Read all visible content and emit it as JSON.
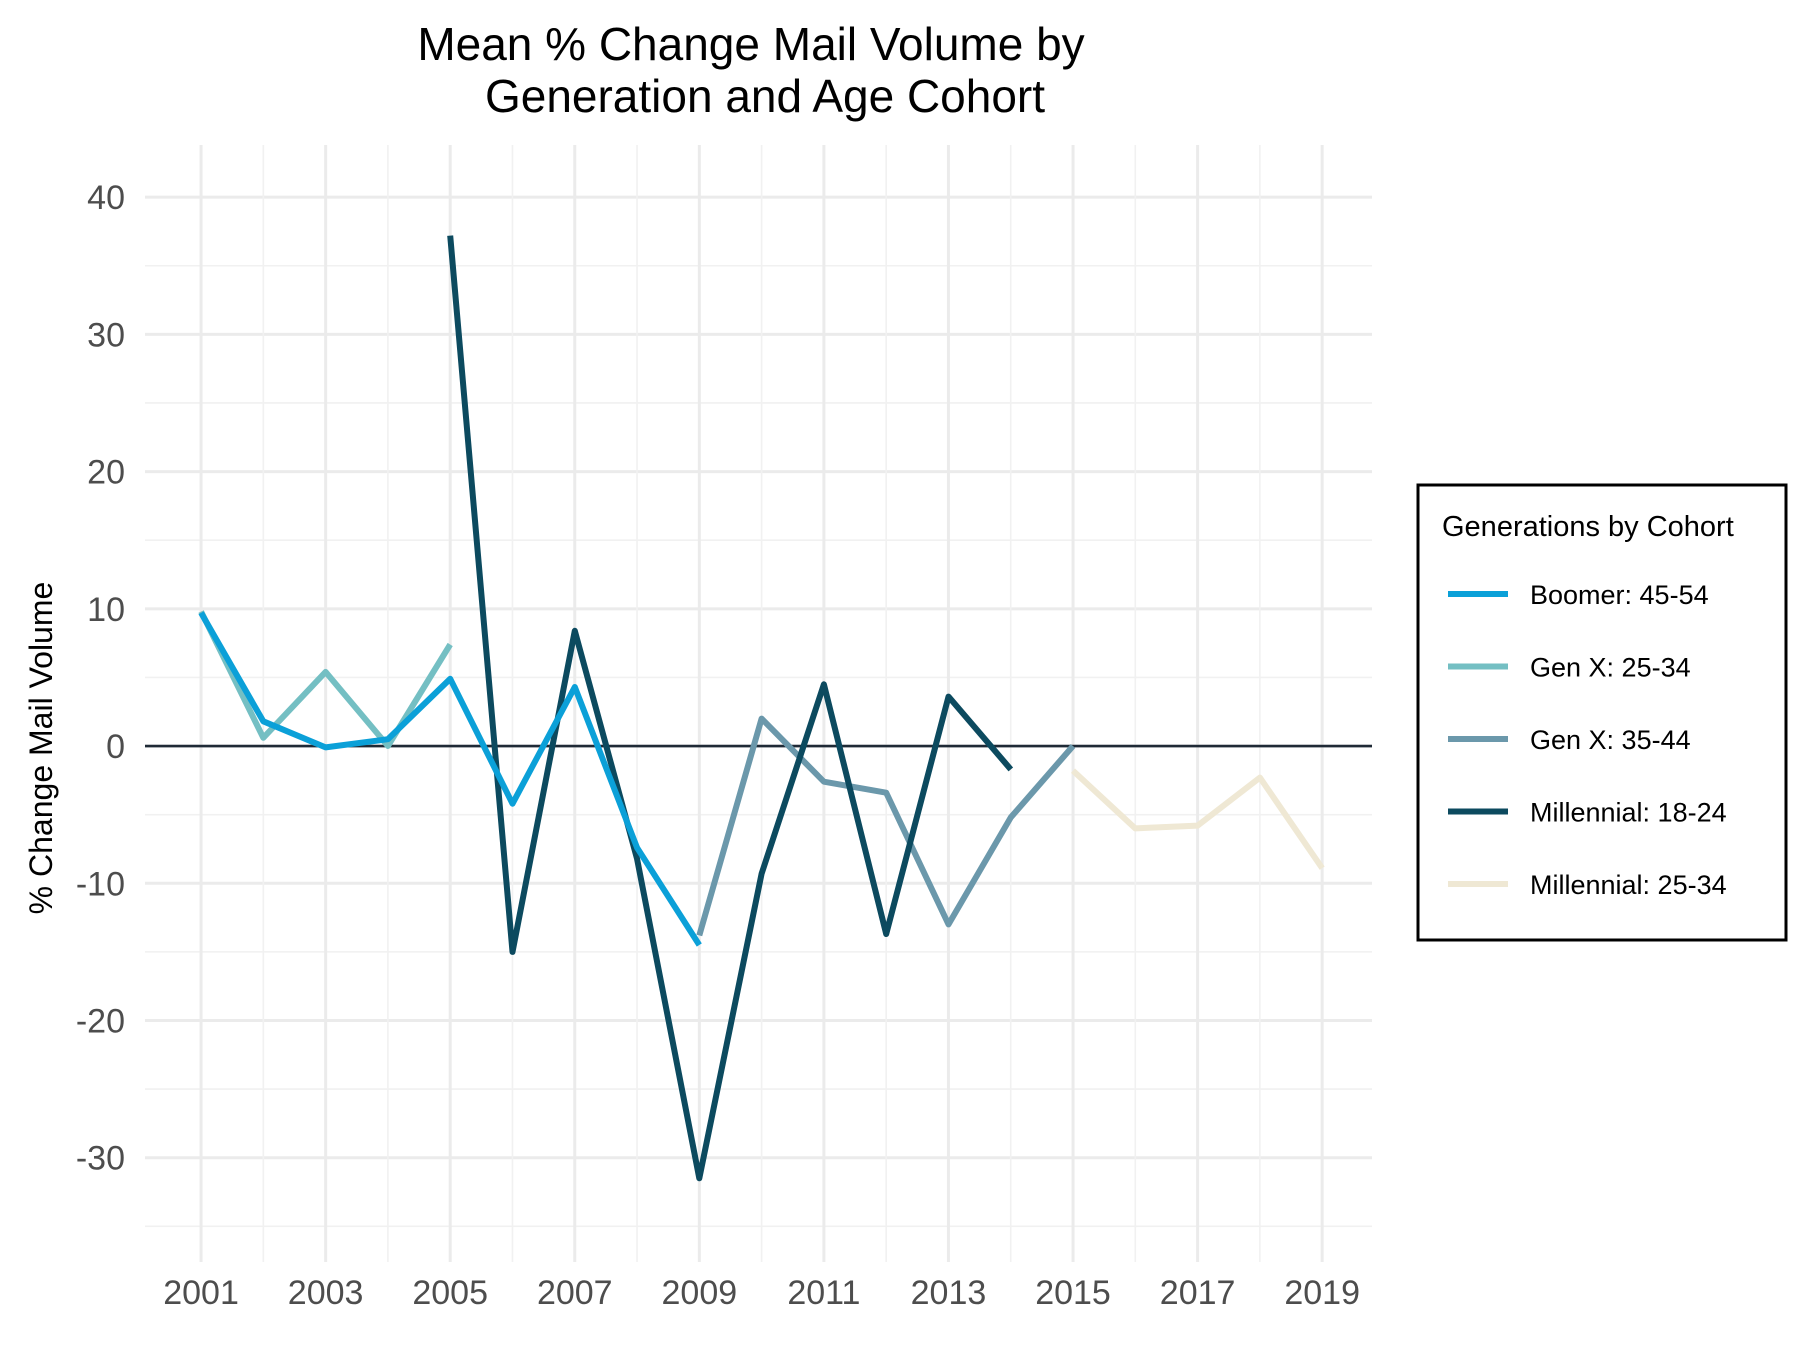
{
  "chart_data": {
    "type": "line",
    "title": [
      "Mean % Change Mail Volume by",
      "Generation and Age Cohort"
    ],
    "ylabel": "% Change Mail Volume",
    "xlabel": "",
    "xlim": [
      2000.1,
      2019.8
    ],
    "ylim": [
      -37.6,
      43.8
    ],
    "x_ticks": [
      2001,
      2003,
      2005,
      2007,
      2009,
      2011,
      2013,
      2015,
      2017,
      2019
    ],
    "y_ticks": [
      -30,
      -20,
      -10,
      0,
      10,
      20,
      30,
      40
    ],
    "grid": true,
    "zero_line": true,
    "legend": {
      "title": "Generations by Cohort",
      "position": "right"
    },
    "series": [
      {
        "name": "Millennial: 25-34",
        "color": "#efe8d4",
        "x": [
          2015,
          2016,
          2017,
          2018,
          2019
        ],
        "y": [
          -1.8,
          -6,
          -5.8,
          -2.3,
          -8.9
        ]
      },
      {
        "name": "Gen X: 35-44",
        "color": "#6b98ab",
        "x": [
          2009,
          2010,
          2011,
          2012,
          2013,
          2014,
          2015
        ],
        "y": [
          -13.8,
          2,
          -2.6,
          -3.4,
          -13,
          -5.2,
          0
        ]
      },
      {
        "name": "Millennial: 18-24",
        "color": "#0c4a5f",
        "x": [
          2005,
          2006,
          2007,
          2008,
          2009,
          2010,
          2011,
          2012,
          2013,
          2014
        ],
        "y": [
          37.2,
          -15,
          8.4,
          -8.2,
          -31.5,
          -9.3,
          4.5,
          -13.7,
          3.6,
          -1.7
        ]
      },
      {
        "name": "Gen X: 25-34",
        "color": "#74bfc3",
        "x": [
          2001,
          2002,
          2003,
          2004,
          2005
        ],
        "y": [
          9.8,
          0.6,
          5.4,
          0,
          7.4
        ]
      },
      {
        "name": "Boomer: 45-54",
        "color": "#0ba0d8",
        "x": [
          2001,
          2002,
          2003,
          2004,
          2005,
          2006,
          2007,
          2008,
          2009
        ],
        "y": [
          9.7,
          1.8,
          -0.1,
          0.5,
          4.9,
          -4.2,
          4.3,
          -7.4,
          -14.5
        ]
      }
    ],
    "legend_order": [
      "Boomer: 45-54",
      "Gen X: 25-34",
      "Gen X: 35-44",
      "Millennial: 18-24",
      "Millennial: 25-34"
    ]
  }
}
